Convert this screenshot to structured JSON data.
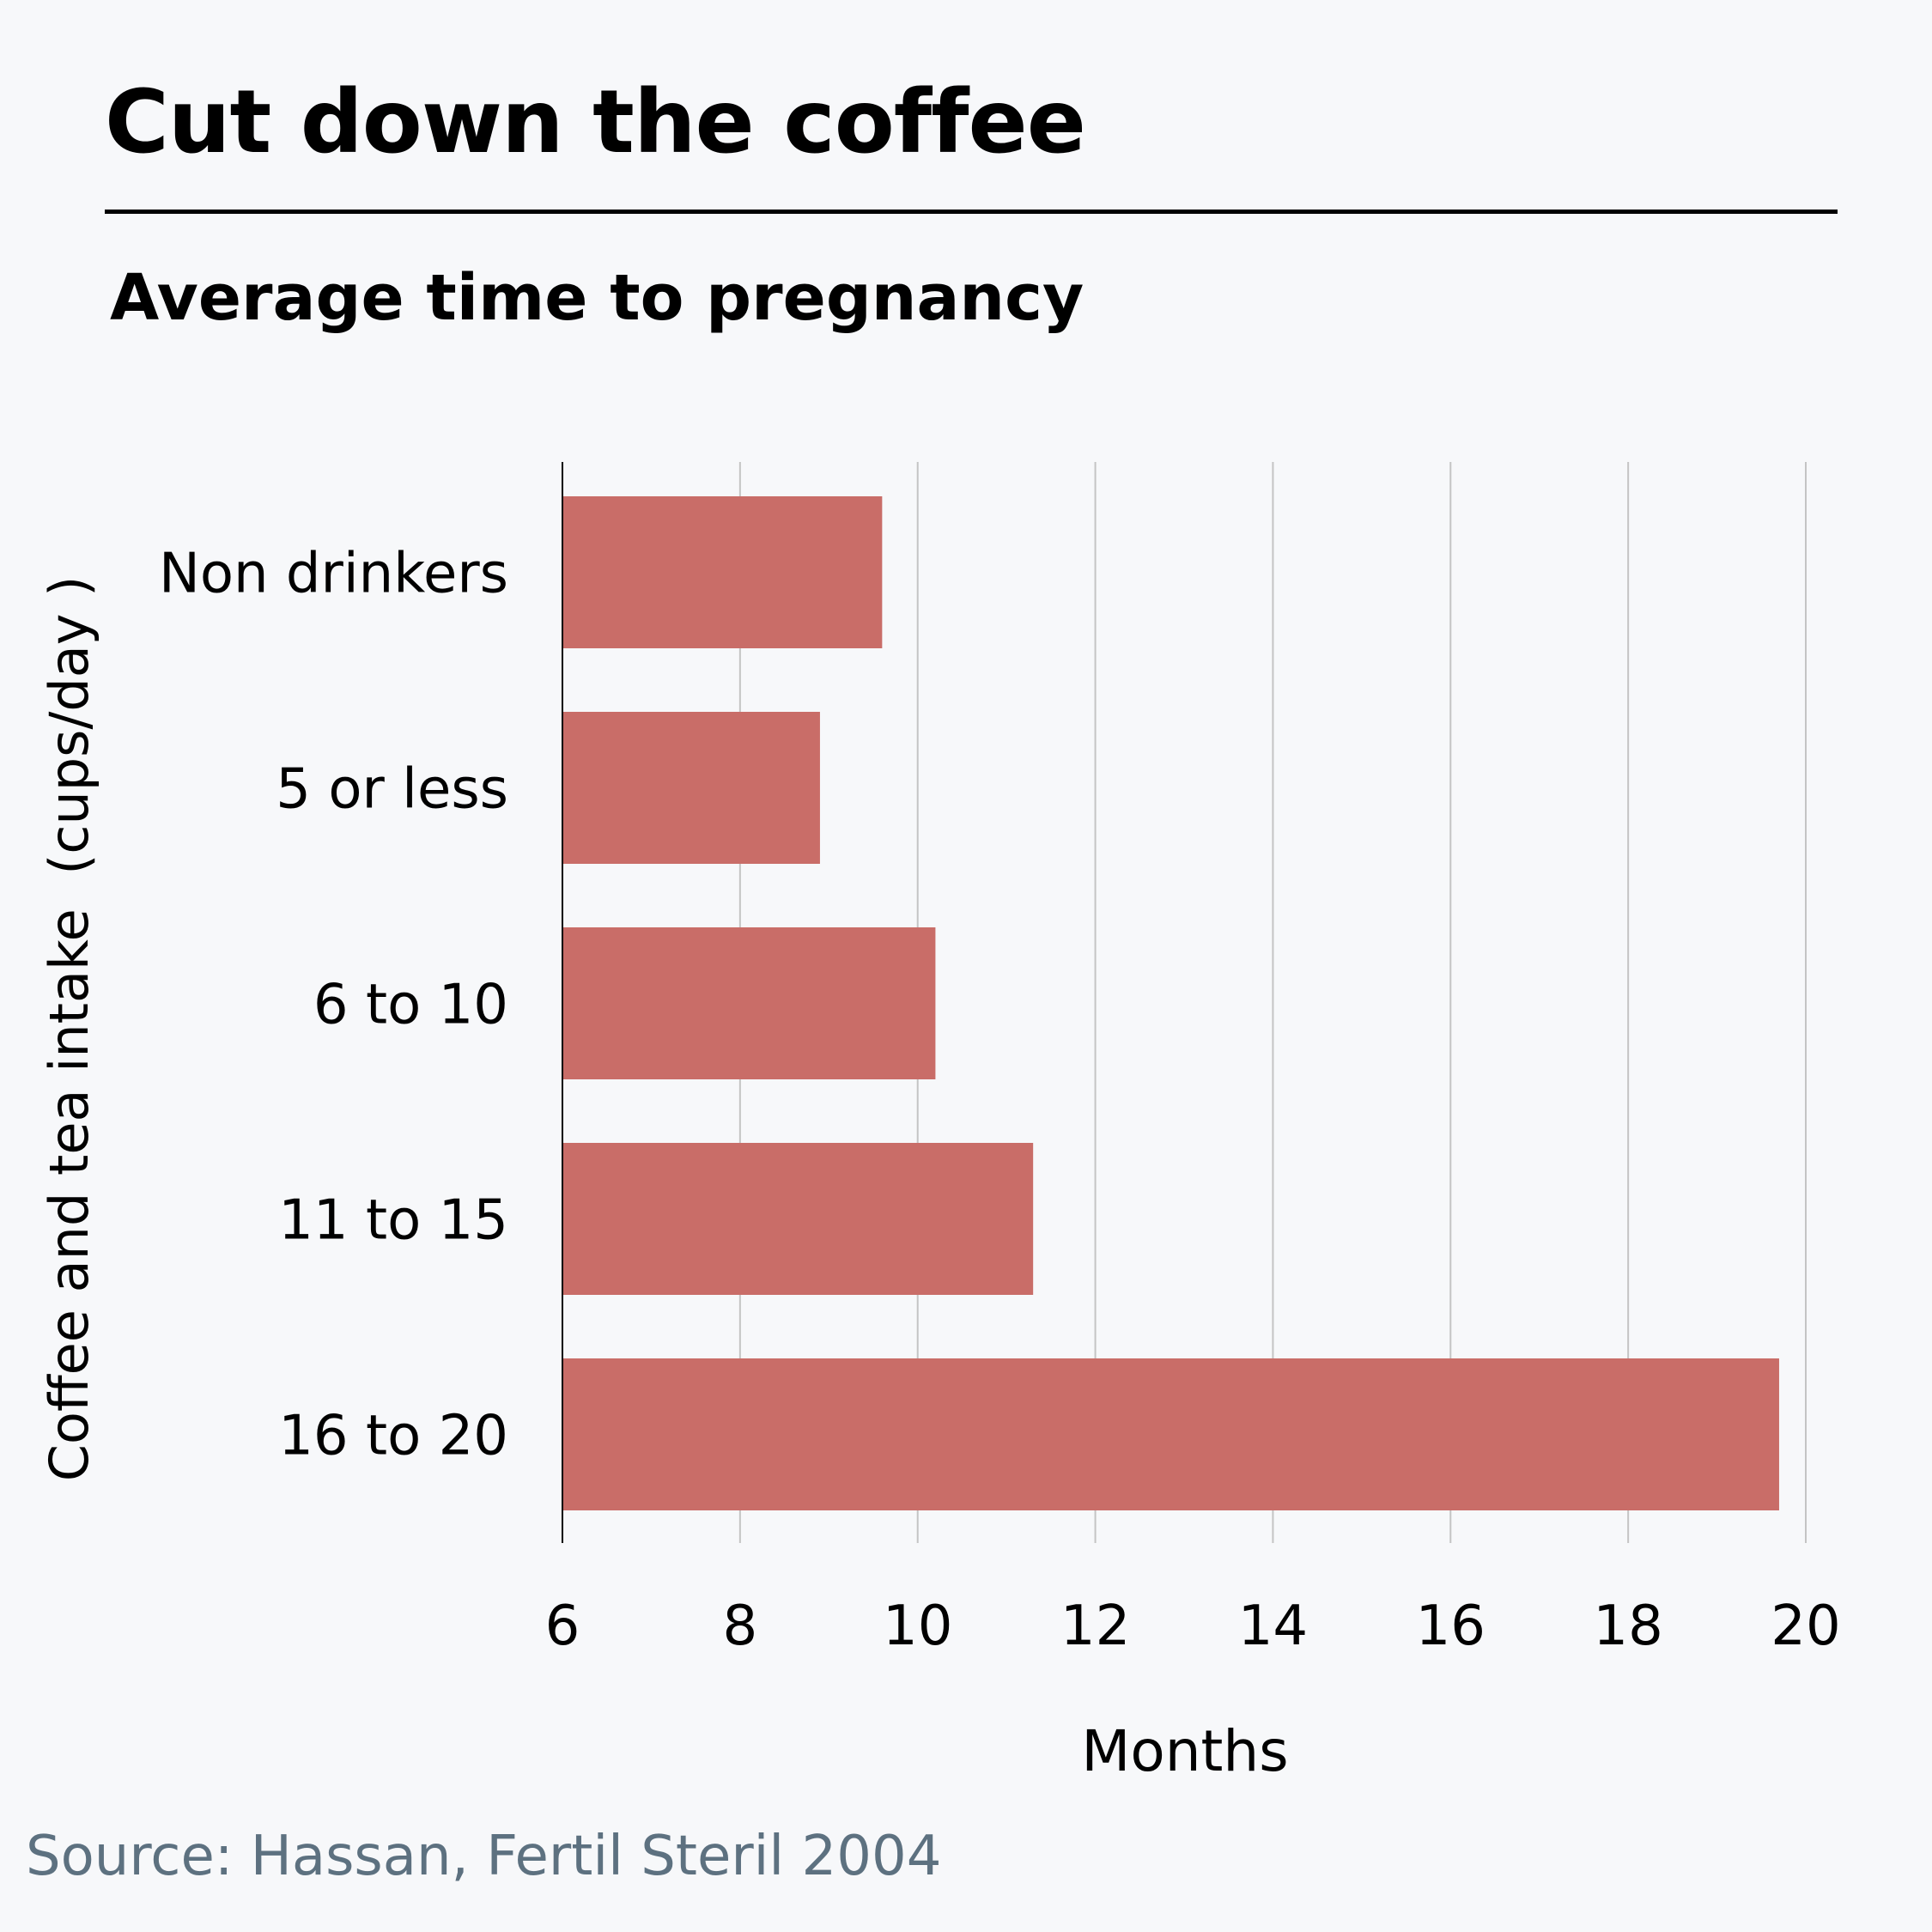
{
  "chart_data": {
    "type": "bar",
    "orientation": "horizontal",
    "title": "Cut down the coffee",
    "subtitle": "Average time to pregnancy",
    "categories": [
      "Non drinkers",
      "5 or less",
      "6 to 10",
      "11 to 15",
      "16 to 20"
    ],
    "values": [
      9.6,
      8.9,
      10.2,
      11.3,
      19.7
    ],
    "xlabel": "Months",
    "ylabel": "Coffee and tea intake  (cups/day )",
    "xlim": [
      6,
      20
    ],
    "xticks": [
      "6",
      "8",
      "10",
      "12",
      "14",
      "16",
      "18",
      "20"
    ],
    "grid": "vertical",
    "legend": "none",
    "bar_color": "#c96d68",
    "source": "Source: Hassan, Fertil Steril 2004"
  }
}
